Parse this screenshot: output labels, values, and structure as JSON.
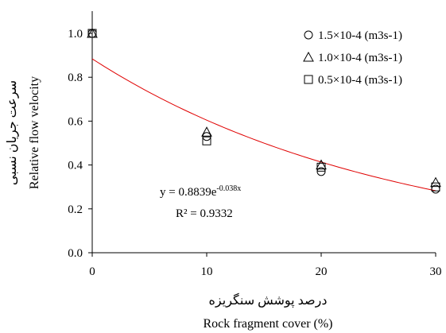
{
  "chart_data": {
    "type": "scatter",
    "xlabel": "Rock fragment cover (%)",
    "xlabel_fa": "درصد پوشش سنگریزه",
    "ylabel": "Relative  flow velocity",
    "ylabel_fa": "سرعت جریان نسبی",
    "xlim": [
      0,
      30
    ],
    "ylim": [
      0,
      1.0
    ],
    "x_ticks": [
      0,
      10,
      20,
      30
    ],
    "x_tick_labels": [
      "0",
      "10",
      "20",
      "30"
    ],
    "y_ticks": [
      0,
      0.2,
      0.4,
      0.6,
      0.8,
      1.0
    ],
    "y_tick_labels": [
      "0.0",
      "0.2",
      "0.4",
      "0.6",
      "0.8",
      "1.0"
    ],
    "grid": false,
    "legend_position": "top-right",
    "series": [
      {
        "name": "1.5×10-4 (m3s-1)",
        "marker": "circle",
        "x": [
          0,
          10,
          20,
          30
        ],
        "y": [
          1.0,
          0.53,
          0.37,
          0.29
        ]
      },
      {
        "name": "1.0×10-4 (m3s-1)",
        "marker": "triangle",
        "x": [
          0,
          10,
          20,
          30
        ],
        "y": [
          1.0,
          0.55,
          0.4,
          0.32
        ]
      },
      {
        "name": "0.5×10-4 (m3s-1)",
        "marker": "square",
        "x": [
          0,
          10,
          20,
          30
        ],
        "y": [
          1.0,
          0.51,
          0.39,
          0.3
        ]
      }
    ],
    "trendline": {
      "color": "#e00000",
      "a": 0.8839,
      "b": -0.038,
      "x_range": [
        0,
        30
      ],
      "equation_base": "y = 0.8839e",
      "equation_exp": "-0.038x",
      "r2": "R² = 0.9332"
    }
  }
}
